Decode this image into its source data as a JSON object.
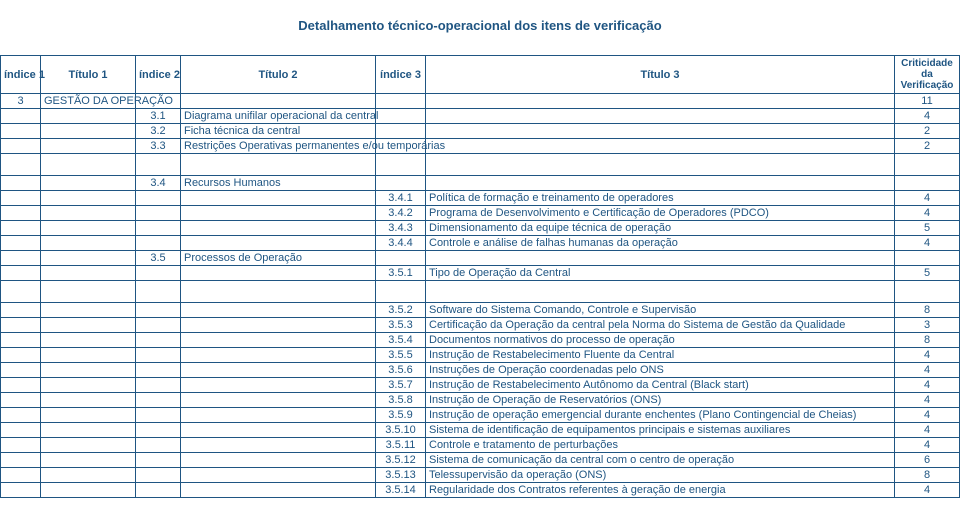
{
  "title": "Detalhamento técnico-operacional dos itens de verificação",
  "headers": {
    "idx1": "índice 1",
    "t1": "Título 1",
    "idx2": "índice 2",
    "t2": "Título 2",
    "idx3": "índice 3",
    "t3": "Título 3",
    "crit": "Criticidade da Verificação"
  },
  "rows": [
    {
      "idx1": "3",
      "t1": "GESTÃO DA OPERAÇÃO",
      "idx2": "",
      "t2": "",
      "idx3": "",
      "t3": "",
      "crit": "11"
    },
    {
      "idx1": "",
      "t1": "",
      "idx2": "3.1",
      "t2": "Diagrama unifilar operacional da central",
      "idx3": "",
      "t3": "",
      "crit": "4"
    },
    {
      "idx1": "",
      "t1": "",
      "idx2": "3.2",
      "t2": "Ficha técnica da central",
      "idx3": "",
      "t3": "",
      "crit": "2"
    },
    {
      "idx1": "",
      "t1": "",
      "idx2": "3.3",
      "t2": "Restrições Operativas permanentes e/ou temporárias",
      "idx3": "",
      "t3": "",
      "crit": "2"
    },
    {
      "gap": true
    },
    {
      "idx1": "",
      "t1": "",
      "idx2": "3.4",
      "t2": "Recursos Humanos",
      "idx3": "",
      "t3": "",
      "crit": ""
    },
    {
      "idx1": "",
      "t1": "",
      "idx2": "",
      "t2": "",
      "idx3": "3.4.1",
      "t3": "Política de formação e treinamento de operadores",
      "crit": "4"
    },
    {
      "idx1": "",
      "t1": "",
      "idx2": "",
      "t2": "",
      "idx3": "3.4.2",
      "t3": "Programa de Desenvolvimento e Certificação de Operadores (PDCO)",
      "crit": "4"
    },
    {
      "idx1": "",
      "t1": "",
      "idx2": "",
      "t2": "",
      "idx3": "3.4.3",
      "t3": "Dimensionamento da equipe técnica de operação",
      "crit": "5"
    },
    {
      "idx1": "",
      "t1": "",
      "idx2": "",
      "t2": "",
      "idx3": "3.4.4",
      "t3": "Controle e análise de falhas humanas da operação",
      "crit": "4"
    },
    {
      "idx1": "",
      "t1": "",
      "idx2": "3.5",
      "t2": "Processos de Operação",
      "idx3": "",
      "t3": "",
      "crit": ""
    },
    {
      "idx1": "",
      "t1": "",
      "idx2": "",
      "t2": "",
      "idx3": "3.5.1",
      "t3": "Tipo de Operação da Central",
      "crit": "5"
    },
    {
      "gap": true
    },
    {
      "idx1": "",
      "t1": "",
      "idx2": "",
      "t2": "",
      "idx3": "3.5.2",
      "t3": "Software do Sistema Comando, Controle e Supervisão",
      "crit": "8"
    },
    {
      "idx1": "",
      "t1": "",
      "idx2": "",
      "t2": "",
      "idx3": "3.5.3",
      "t3": "Certificação da Operação da central pela Norma do Sistema de Gestão da Qualidade",
      "crit": "3"
    },
    {
      "idx1": "",
      "t1": "",
      "idx2": "",
      "t2": "",
      "idx3": "3.5.4",
      "t3": "Documentos normativos do processo de operação",
      "crit": "8"
    },
    {
      "idx1": "",
      "t1": "",
      "idx2": "",
      "t2": "",
      "idx3": "3.5.5",
      "t3": "Instrução de Restabelecimento Fluente da Central",
      "crit": "4"
    },
    {
      "idx1": "",
      "t1": "",
      "idx2": "",
      "t2": "",
      "idx3": "3.5.6",
      "t3": "Instruções de Operação coordenadas pelo ONS",
      "crit": "4"
    },
    {
      "idx1": "",
      "t1": "",
      "idx2": "",
      "t2": "",
      "idx3": "3.5.7",
      "t3": "Instrução de Restabelecimento Autônomo da Central (Black start)",
      "crit": "4"
    },
    {
      "idx1": "",
      "t1": "",
      "idx2": "",
      "t2": "",
      "idx3": "3.5.8",
      "t3": "Instrução de Operação de Reservatórios (ONS)",
      "crit": "4"
    },
    {
      "idx1": "",
      "t1": "",
      "idx2": "",
      "t2": "",
      "idx3": "3.5.9",
      "t3": "Instrução de operação emergencial durante enchentes (Plano Contingencial de Cheias)",
      "crit": "4"
    },
    {
      "idx1": "",
      "t1": "",
      "idx2": "",
      "t2": "",
      "idx3": "3.5.10",
      "t3": "Sistema de identificação de equipamentos principais e sistemas auxiliares",
      "crit": "4"
    },
    {
      "idx1": "",
      "t1": "",
      "idx2": "",
      "t2": "",
      "idx3": "3.5.11",
      "t3": "Controle e tratamento de perturbações",
      "crit": "4"
    },
    {
      "idx1": "",
      "t1": "",
      "idx2": "",
      "t2": "",
      "idx3": "3.5.12",
      "t3": "Sistema de comunicação da central com o centro de operação",
      "crit": "6"
    },
    {
      "idx1": "",
      "t1": "",
      "idx2": "",
      "t2": "",
      "idx3": "3.5.13",
      "t3": "Telessupervisão da operação (ONS)",
      "crit": "8"
    },
    {
      "idx1": "",
      "t1": "",
      "idx2": "",
      "t2": "",
      "idx3": "3.5.14",
      "t3": "Regularidade dos Contratos referentes à geração de energia",
      "crit": "4"
    }
  ]
}
